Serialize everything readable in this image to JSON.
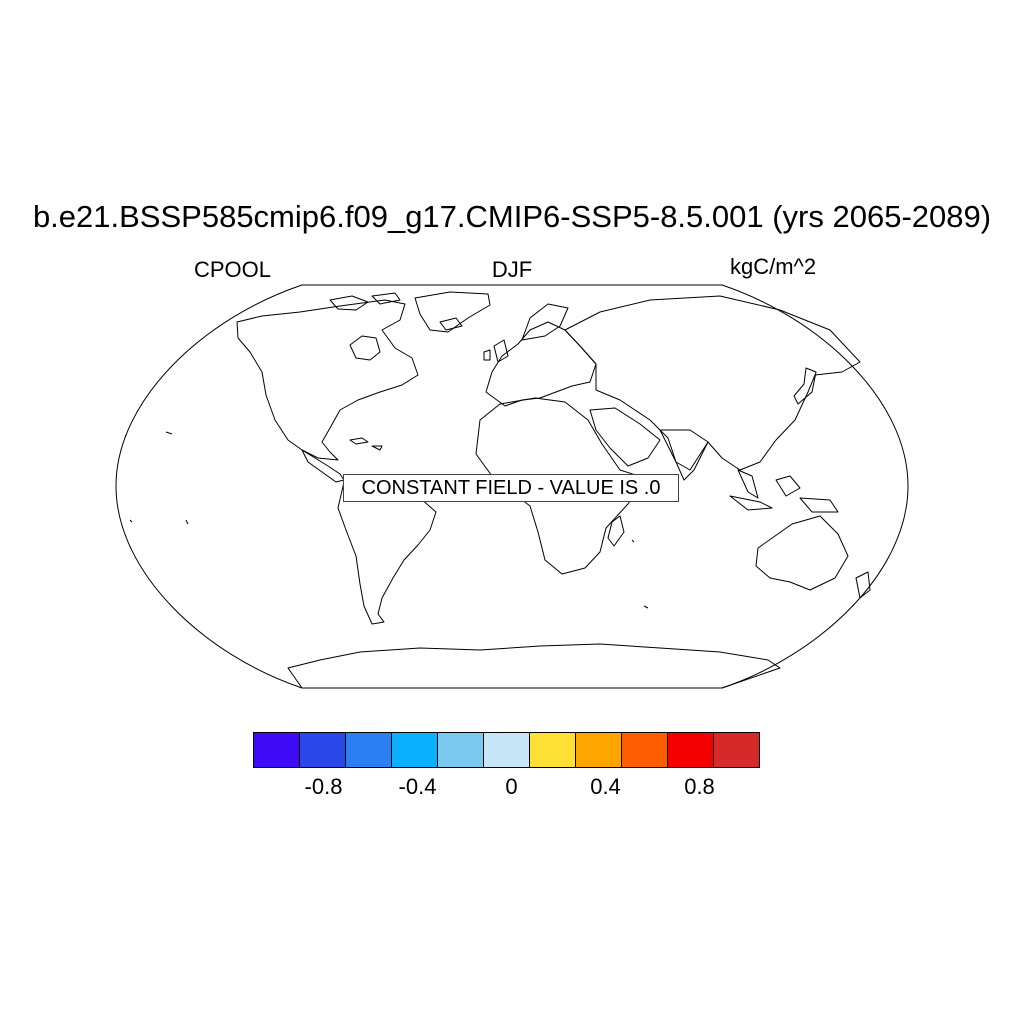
{
  "title": "b.e21.BSSP585cmip6.f09_g17.CMIP6-SSP5-8.5.001 (yrs 2065-2089)",
  "left_label": "CPOOL",
  "center_label": "DJF",
  "right_label": "kgC/m^2",
  "message": "CONSTANT FIELD - VALUE IS .0",
  "map": {
    "projection": "robinson",
    "features": [
      "coastlines"
    ],
    "field": "CPOOL",
    "field_value": 0.0
  },
  "colorbar": {
    "colors": [
      "#3f0af5",
      "#2a47e8",
      "#2c7ff0",
      "#0ab0fb",
      "#7bc8f0",
      "#c7e6f7",
      "#ffe135",
      "#ffa500",
      "#ff5e00",
      "#f50000",
      "#d52a2a"
    ],
    "tick_labels": [
      "-0.8",
      "-0.4",
      "0",
      "0.4",
      "0.8"
    ]
  }
}
